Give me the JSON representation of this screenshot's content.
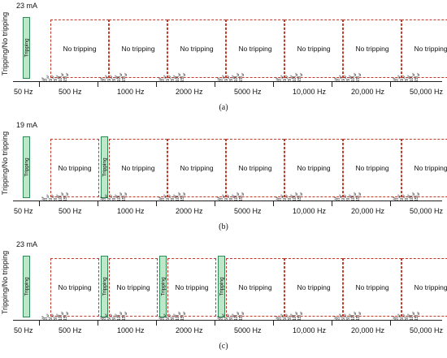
{
  "y_axis_label": "Tripping/No tripping",
  "multiplier_labels": [
    "I",
    "2I",
    "5I",
    "8I",
    "10I",
    "15I"
  ],
  "multiplier_subscript": "ΔF",
  "panels": [
    {
      "id": "a",
      "caption": "(a)",
      "current": "23 mA",
      "frequencies": [
        {
          "label": "50 Hz",
          "status": "Tripping"
        },
        {
          "label": "500 Hz",
          "status": "No tripping",
          "tripping_at_top": false
        },
        {
          "label": "1000 Hz",
          "status": "No tripping",
          "tripping_at_top": false
        },
        {
          "label": "2000 Hz",
          "status": "No tripping",
          "tripping_at_top": false
        },
        {
          "label": "5000 Hz",
          "status": "No tripping",
          "tripping_at_top": false
        },
        {
          "label": "10,000 Hz",
          "status": "No tripping",
          "tripping_at_top": false
        },
        {
          "label": "20,000 Hz",
          "status": "No tripping",
          "tripping_at_top": false
        },
        {
          "label": "50,000 Hz",
          "status": "No tripping",
          "tripping_at_top": false
        }
      ]
    },
    {
      "id": "b",
      "caption": "(b)",
      "current": "19 mA",
      "frequencies": [
        {
          "label": "50 Hz",
          "status": "Tripping"
        },
        {
          "label": "500 Hz",
          "status": "No tripping",
          "tripping_at_top": true
        },
        {
          "label": "1000 Hz",
          "status": "No tripping",
          "tripping_at_top": false
        },
        {
          "label": "2000 Hz",
          "status": "No tripping",
          "tripping_at_top": false
        },
        {
          "label": "5000 Hz",
          "status": "No tripping",
          "tripping_at_top": false
        },
        {
          "label": "10,000 Hz",
          "status": "No tripping",
          "tripping_at_top": false
        },
        {
          "label": "20,000 Hz",
          "status": "No tripping",
          "tripping_at_top": false
        },
        {
          "label": "50,000 Hz",
          "status": "No tripping",
          "tripping_at_top": false
        }
      ]
    },
    {
      "id": "c",
      "caption": "(c)",
      "current": "23 mA",
      "frequencies": [
        {
          "label": "50 Hz",
          "status": "Tripping"
        },
        {
          "label": "500 Hz",
          "status": "No tripping",
          "tripping_at_top": true
        },
        {
          "label": "1000 Hz",
          "status": "No tripping",
          "tripping_at_top": true
        },
        {
          "label": "2000 Hz",
          "status": "No tripping",
          "tripping_at_top": true
        },
        {
          "label": "5000 Hz",
          "status": "No tripping",
          "tripping_at_top": false
        },
        {
          "label": "10,000 Hz",
          "status": "No tripping",
          "tripping_at_top": false
        },
        {
          "label": "20,000 Hz",
          "status": "No tripping",
          "tripping_at_top": false
        },
        {
          "label": "50,000 Hz",
          "status": "No tripping",
          "tripping_at_top": false
        }
      ],
      "tripping_text": "Tripping"
    }
  ],
  "tripping_text": "Tripping",
  "no_tripping_text": "No tripping",
  "colors": {
    "tripping_fill": "#bfe6c9",
    "tripping_border": "#2e8b57",
    "no_tripping_border": "#c0392b",
    "axis": "#222222"
  }
}
